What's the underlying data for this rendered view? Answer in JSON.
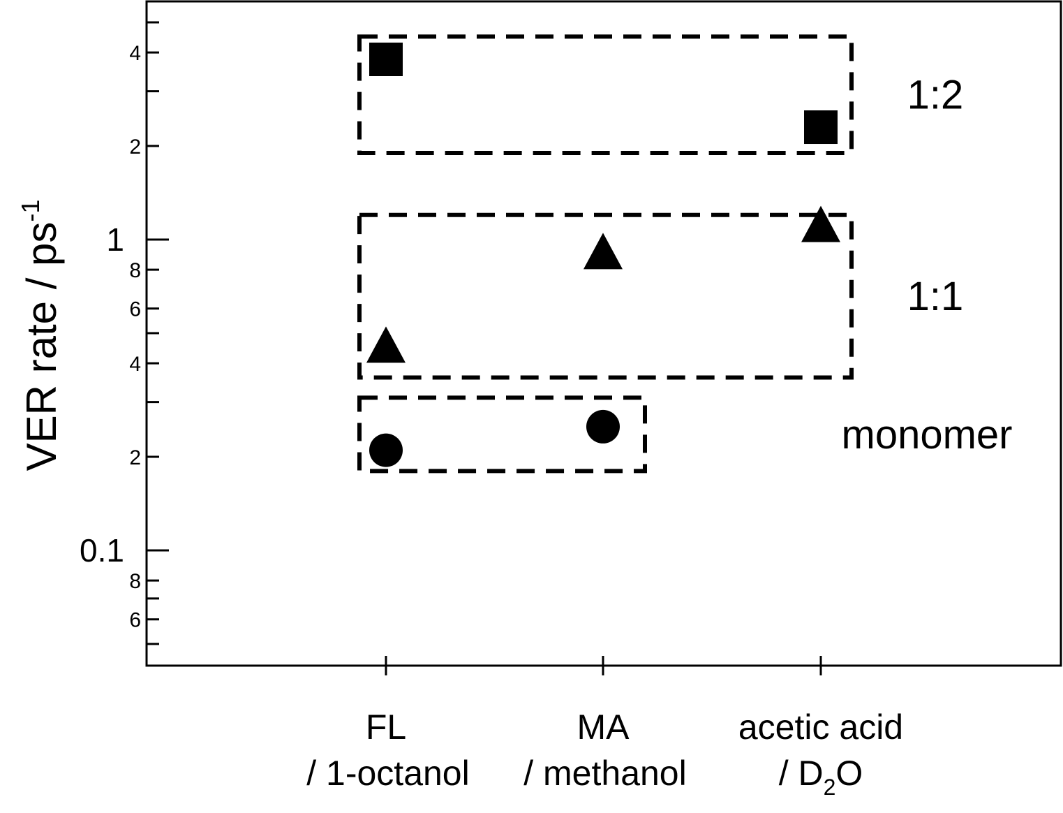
{
  "chart_data": {
    "type": "scatter",
    "ylabel": "VER rate / ps",
    "ylabel_superscript": "-1",
    "yscale": "log",
    "ylim": [
      0.05,
      5.5
    ],
    "categories": [
      {
        "line1": "FL",
        "line2": "/ 1-octanol"
      },
      {
        "line1": "MA",
        "line2": "/ methanol"
      },
      {
        "line1": "acetic acid",
        "line2_pre": "/ D",
        "line2_sub": "2",
        "line2_post": "O"
      }
    ],
    "y_major_ticks": [
      {
        "value": 1,
        "label": "1"
      },
      {
        "value": 0.1,
        "label": "0.1"
      }
    ],
    "y_minor_ticks": [
      {
        "value": 4,
        "label": "4"
      },
      {
        "value": 2,
        "label": "2"
      },
      {
        "value": 0.8,
        "label": "8"
      },
      {
        "value": 0.6,
        "label": "6"
      },
      {
        "value": 0.4,
        "label": "4"
      },
      {
        "value": 0.2,
        "label": "2"
      },
      {
        "value": 0.08,
        "label": "8"
      },
      {
        "value": 0.06,
        "label": "6"
      }
    ],
    "y_unlabeled_ticks": [
      5,
      3,
      0.5,
      0.3,
      0.07,
      0.05
    ],
    "series": [
      {
        "marker": "square",
        "values": [
          3.8,
          null,
          2.3
        ]
      },
      {
        "marker": "triangle",
        "values": [
          0.45,
          0.9,
          1.1
        ]
      },
      {
        "marker": "circle",
        "values": [
          0.21,
          0.25,
          null
        ]
      }
    ],
    "groups": [
      {
        "label": "1:2",
        "cat_from": 0,
        "cat_to": 2,
        "y_from": 1.9,
        "y_to": 4.5
      },
      {
        "label": "1:1",
        "cat_from": 0,
        "cat_to": 2,
        "y_from": 0.36,
        "y_to": 1.2
      },
      {
        "label": "monomer",
        "cat_from": 0,
        "cat_to": 1,
        "y_from": 0.18,
        "y_to": 0.31
      }
    ]
  }
}
